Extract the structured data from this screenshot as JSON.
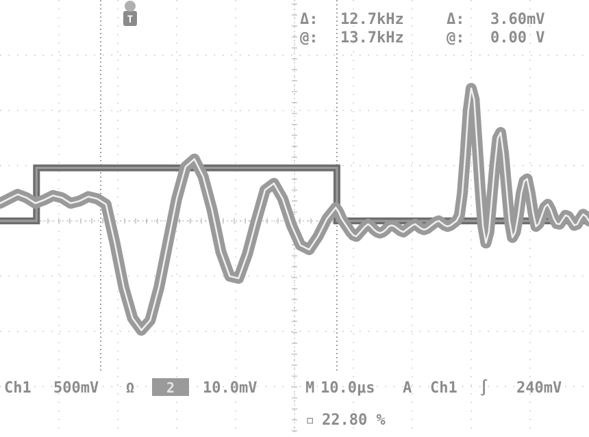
{
  "readout": {
    "delta_symbol": "Δ:",
    "cursor_symbol": "@:",
    "delta_freq": "12.7kHz",
    "cursor_freq": "13.7kHz",
    "delta_volt": "3.60mV",
    "cursor_volt": "0.00 V"
  },
  "trigger_marker": "T",
  "status_bar": {
    "ch1_label": "Ch1",
    "ch1_scale": "500mV",
    "ohm_symbol": "Ω",
    "ch2_badge": "2",
    "ch2_scale": "10.0mV",
    "timebase_prefix": "M",
    "timebase": "10.0μs",
    "trigger_mode": "A",
    "trigger_source": "Ch1",
    "slope_symbol": "∫",
    "trigger_level": "240mV",
    "position_prefix": "▫",
    "position": "22.80 %"
  },
  "colors": {
    "trace": "#9a9a9a",
    "pulse": "#6e6e6e",
    "grid": "#b4b4b4",
    "cursor": "#8a8a8a",
    "text": "#8c8c8c"
  },
  "chart_data": {
    "type": "line",
    "title": "",
    "xlabel": "",
    "ylabel": "",
    "x_unit": "μs",
    "xlim": [
      -48.0,
      52.0
    ],
    "grid": true,
    "divisions": {
      "x": 10,
      "y": 8
    },
    "series": [
      {
        "name": "Ch1",
        "ylim": [
          -2000,
          2000
        ],
        "x": [
          -48.0,
          -41.8,
          -41.8,
          9.2,
          9.2,
          52.0
        ],
        "y": [
          0,
          0,
          480,
          480,
          0,
          0
        ]
      },
      {
        "name": "Ch2",
        "ylim": [
          -40.0,
          40.0
        ],
        "x": [
          -48.0,
          -46.5,
          -45.0,
          -43.5,
          -42.0,
          -40.5,
          -39.0,
          -37.5,
          -36.0,
          -34.5,
          -33.0,
          -31.5,
          -30.0,
          -28.5,
          -27.0,
          -25.5,
          -24.0,
          -22.5,
          -21.0,
          -19.5,
          -18.0,
          -16.5,
          -15.0,
          -13.5,
          -12.0,
          -10.5,
          -9.0,
          -7.5,
          -6.0,
          -4.5,
          -3.0,
          -1.5,
          0.0,
          1.5,
          3.0,
          4.5,
          6.0,
          7.5,
          9.0,
          9.5,
          10.0,
          10.5,
          11.0,
          11.5,
          12.0,
          12.5,
          13.0,
          13.5,
          14.0,
          14.5,
          15.0,
          15.5,
          16.0,
          16.5,
          17.0,
          17.5,
          18.0,
          18.5,
          19.0,
          19.5,
          20.0,
          20.5,
          21.0,
          21.5,
          22.0,
          22.5,
          23.0,
          23.5,
          24.0,
          24.5,
          25.0,
          25.5,
          26.0,
          26.5,
          27.0,
          27.5,
          28.0,
          28.5,
          29.0,
          29.5,
          30.0,
          30.5,
          31.0,
          31.5,
          32.0,
          32.5,
          33.0,
          33.5,
          34.0,
          34.5,
          35.0,
          35.5,
          36.0,
          36.5,
          37.0,
          37.5,
          38.0,
          38.5,
          39.0,
          39.5,
          40.0,
          40.5,
          41.0,
          41.5,
          42.0,
          42.5,
          43.0,
          43.5,
          44.0,
          44.5,
          45.0,
          45.5,
          46.0,
          46.5,
          47.0,
          47.5,
          48.0,
          48.5,
          49.0,
          49.5,
          50.0,
          50.5,
          51.0,
          51.5,
          52.0
        ],
        "y": [
          3.2,
          4.0,
          4.8,
          4.2,
          3.2,
          3.8,
          4.6,
          4.2,
          3.2,
          3.6,
          4.4,
          4.0,
          3.0,
          -4.0,
          -12.0,
          -17.6,
          -19.8,
          -18.0,
          -12.0,
          -4.0,
          4.0,
          9.8,
          11.2,
          8.0,
          2.0,
          -5.6,
          -10.0,
          -10.4,
          -6.0,
          0.0,
          5.6,
          6.8,
          4.0,
          -0.8,
          -4.4,
          -5.2,
          -2.8,
          0.4,
          2.4,
          1.6,
          0.4,
          -0.4,
          -1.2,
          -2.0,
          -2.6,
          -2.8,
          -2.2,
          -1.6,
          -1.0,
          -0.6,
          -1.0,
          -1.6,
          -2.0,
          -2.2,
          -2.0,
          -1.6,
          -1.0,
          -0.8,
          -1.0,
          -1.4,
          -1.8,
          -2.0,
          -1.6,
          -1.2,
          -0.8,
          -0.6,
          -1.0,
          -1.4,
          -1.6,
          -1.4,
          -1.0,
          -0.6,
          -0.2,
          0.0,
          -0.4,
          -0.8,
          -1.0,
          -0.8,
          -0.4,
          0.0,
          1.0,
          5.0,
          12.0,
          20.0,
          24.0,
          22.0,
          14.0,
          6.0,
          -1.0,
          -4.0,
          -2.0,
          4.0,
          10.0,
          15.0,
          16.0,
          12.0,
          6.0,
          0.0,
          -3.0,
          -2.0,
          1.0,
          5.0,
          7.2,
          7.6,
          5.0,
          1.5,
          -1.0,
          -0.5,
          1.0,
          2.5,
          3.0,
          2.0,
          0.5,
          -0.5,
          -0.6,
          0.2,
          1.0,
          0.8,
          0.0,
          -0.8,
          -0.6,
          0.4,
          1.2,
          0.8,
          0.0
        ]
      }
    ],
    "cursors": {
      "vertical_x": [
        -30.9,
        9.2
      ],
      "trigger_x": -41.8
    }
  }
}
